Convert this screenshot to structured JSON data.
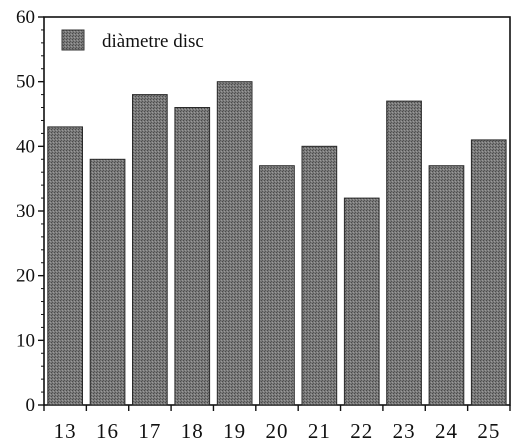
{
  "chart_data": {
    "type": "bar",
    "categories": [
      "13",
      "16",
      "17",
      "18",
      "19",
      "20",
      "21",
      "22",
      "23",
      "24",
      "25"
    ],
    "series": [
      {
        "name": "diàmetre disc",
        "values": [
          43,
          38,
          48,
          46,
          50,
          37,
          40,
          32,
          47,
          37,
          41
        ],
        "color": "#6e6e6e"
      }
    ],
    "title": "",
    "xlabel": "",
    "ylabel": "",
    "ylim": [
      0,
      60
    ],
    "yticks": [
      0,
      10,
      20,
      30,
      40,
      50,
      60
    ],
    "grid": false,
    "legend": "top-left"
  }
}
